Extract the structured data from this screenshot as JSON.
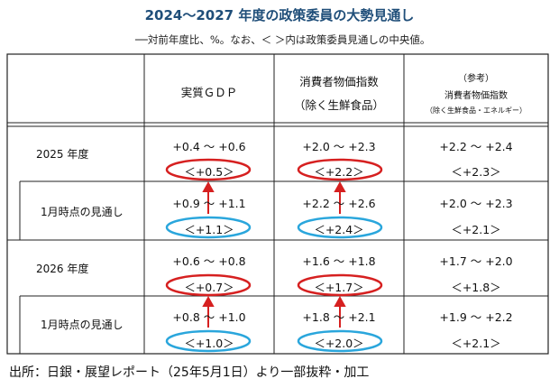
{
  "title": "2024〜2027 年度の政策委員の大勢見通し",
  "subtitle": "──対前年度比、%。なお、＜ ＞内は政策委員見通しの中央値。",
  "headers": {
    "gdp": "実質ＧＤＰ",
    "cpi_line1": "消費者物価指数",
    "cpi_line2": "（除く生鮮食品）",
    "ref_line1": "（参考）",
    "ref_line2": "消費者物価指数",
    "ref_line3": "（除く生鮮食品・エネルギー）"
  },
  "rows": [
    {
      "label": "2025 年度",
      "gdp": "+0.4 〜 +0.6",
      "gdp_med": "＜+0.5＞",
      "cpi": "+2.0 〜 +2.3",
      "cpi_med": "＜+2.2＞",
      "ref": "+2.2 〜 +2.4",
      "ref_med": "＜+2.3＞"
    },
    {
      "label": "1月時点の見通し",
      "gdp": "+0.9 〜 +1.1",
      "gdp_med": "＜+1.1＞",
      "cpi": "+2.2 〜 +2.6",
      "cpi_med": "＜+2.4＞",
      "ref": "+2.0 〜 +2.3",
      "ref_med": "＜+2.1＞"
    },
    {
      "label": "2026 年度",
      "gdp": "+0.6 〜 +0.8",
      "gdp_med": "＜+0.7＞",
      "cpi": "+1.6 〜 +1.8",
      "cpi_med": "＜+1.7＞",
      "ref": "+1.7 〜 +2.0",
      "ref_med": "＜+1.8＞"
    },
    {
      "label": "1月時点の見通し",
      "gdp": "+0.8 〜 +1.0",
      "gdp_med": "＜+1.0＞",
      "cpi": "+1.8 〜 +2.1",
      "cpi_med": "＜+2.0＞",
      "ref": "+1.9 〜 +2.2",
      "ref_med": "＜+2.1＞"
    }
  ],
  "footer": "出所：日銀・展望レポート（25年5月1日）より一部抜粋・加工",
  "colors": {
    "title": "#1f4e79",
    "red_ellipse": "#d62020",
    "blue_ellipse": "#2aa6dc",
    "arrow": "#d62020"
  }
}
